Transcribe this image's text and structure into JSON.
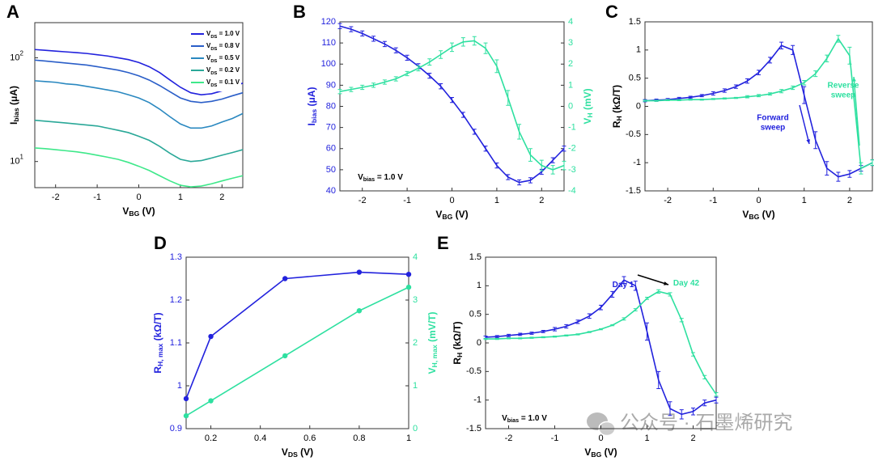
{
  "chart_data": [
    {
      "type": "line",
      "label": "A",
      "log_y": true,
      "legend": "upper right",
      "xlabel": [
        "V",
        "BG",
        " (V)"
      ],
      "ylabel": [
        "I",
        "bias",
        " (μA)"
      ],
      "xlim": [
        -2.5,
        2.5
      ],
      "xticks": [
        -2,
        -1,
        0,
        1,
        2
      ],
      "ylim": [
        5.6,
        218
      ],
      "yticks": [
        {
          "value": 10,
          "label": "10",
          "exponent": "1"
        },
        {
          "value": 100,
          "label": "10",
          "exponent": "2"
        }
      ],
      "x": [
        -2.5,
        -2.25,
        -2,
        -1.75,
        -1.5,
        -1.25,
        -1,
        -0.75,
        -0.5,
        -0.25,
        0,
        0.25,
        0.5,
        0.75,
        1,
        1.25,
        1.5,
        1.75,
        2,
        2.25,
        2.5
      ],
      "series": [
        {
          "name": [
            "V",
            "DS",
            " = 1.0 V"
          ],
          "color": "#2222dd",
          "values": [
            120,
            118,
            116,
            114,
            112,
            110,
            107,
            104,
            100,
            96,
            90,
            82,
            72,
            61,
            52,
            46,
            44,
            45,
            48,
            52,
            57
          ]
        },
        {
          "name": [
            "V",
            "DS",
            " = 0.8 V"
          ],
          "color": "#2a5ec8",
          "values": [
            95,
            93,
            91,
            89,
            87,
            85,
            82,
            79,
            76,
            72,
            67,
            61,
            54,
            47,
            41,
            38,
            37,
            38,
            40,
            43,
            46
          ]
        },
        {
          "name": [
            "V",
            "DS",
            " = 0.5 V"
          ],
          "color": "#2a88c0",
          "values": [
            60,
            59,
            58,
            56,
            55,
            53,
            51,
            49,
            47,
            44,
            41,
            37,
            32,
            27,
            23,
            21,
            21,
            22,
            24,
            26,
            29
          ]
        },
        {
          "name": [
            "V",
            "DS",
            " = 0.2 V"
          ],
          "color": "#2aa898",
          "values": [
            25,
            24.5,
            24,
            23.5,
            23,
            22.5,
            22,
            21,
            20,
            19,
            17.5,
            16,
            14,
            12,
            10.5,
            10,
            10.2,
            10.8,
            11.5,
            12.2,
            13
          ]
        },
        {
          "name": [
            "V",
            "DS",
            " = 0.1 V"
          ],
          "color": "#3ee88a",
          "values": [
            13.5,
            13.3,
            13,
            12.7,
            12.4,
            12,
            11.5,
            11,
            10.5,
            9.8,
            9,
            8.2,
            7.3,
            6.5,
            5.9,
            5.7,
            5.8,
            6.1,
            6.5,
            6.9,
            7.3
          ]
        }
      ]
    },
    {
      "type": "line",
      "label": "B",
      "xlabel": [
        "V",
        "BG",
        " (V)"
      ],
      "ylabel": [
        "I",
        "bias",
        " (μA)"
      ],
      "y2label": [
        "V",
        "H",
        " (mV)"
      ],
      "y_color": "#2222dd",
      "y2_color": "#2ee0a0",
      "xlim": [
        -2.5,
        2.5
      ],
      "xticks": [
        -2,
        -1,
        0,
        1,
        2
      ],
      "ylim": [
        40,
        120
      ],
      "yticks": [
        40,
        50,
        60,
        70,
        80,
        90,
        100,
        110,
        120
      ],
      "y2lim": [
        -4,
        4
      ],
      "y2ticks": [
        -4,
        -3,
        -2,
        -1,
        0,
        1,
        2,
        3,
        4
      ],
      "x": [
        -2.5,
        -2.25,
        -2,
        -1.75,
        -1.5,
        -1.25,
        -1,
        -0.75,
        -0.5,
        -0.25,
        0,
        0.25,
        0.5,
        0.75,
        1,
        1.25,
        1.5,
        1.75,
        2,
        2.25,
        2.5
      ],
      "series": [
        {
          "color": "#2222dd",
          "values": [
            118,
            116.5,
            114.5,
            112,
            109.5,
            106.5,
            103,
            99,
            94.5,
            89.5,
            83,
            76,
            68,
            60,
            52,
            46.5,
            44,
            45,
            49,
            54.5,
            60
          ],
          "errors": [
            1.2,
            1.2,
            1.2,
            1.2,
            1.2,
            1.2,
            1.2,
            1.2,
            1.2,
            1.2,
            1.2,
            1.2,
            1.2,
            1.2,
            1.2,
            1.2,
            1.2,
            1.2,
            1.2,
            1.2,
            1.2
          ]
        },
        {
          "color": "#2ee0a0",
          "axis": "y2",
          "values": [
            0.7,
            0.8,
            0.9,
            1.0,
            1.15,
            1.3,
            1.55,
            1.8,
            2.1,
            2.45,
            2.8,
            3.05,
            3.1,
            2.75,
            1.9,
            0.4,
            -1.2,
            -2.3,
            -2.8,
            -3.0,
            -2.8
          ],
          "errors": [
            0.1,
            0.1,
            0.1,
            0.1,
            0.1,
            0.1,
            0.1,
            0.12,
            0.15,
            0.18,
            0.2,
            0.2,
            0.2,
            0.25,
            0.3,
            0.35,
            0.35,
            0.3,
            0.25,
            0.2,
            0.2
          ]
        }
      ],
      "annotations": [
        {
          "text": [
            "V",
            "bias",
            " = 1.0 V"
          ],
          "color": "#000000"
        }
      ]
    },
    {
      "type": "line",
      "label": "C",
      "xlabel": [
        "V",
        "BG",
        " (V)"
      ],
      "ylabel": [
        "R",
        "H",
        " (kΩ/T)"
      ],
      "xlim": [
        -2.5,
        2.5
      ],
      "xticks": [
        -2,
        -1,
        0,
        1,
        2
      ],
      "ylim": [
        -1.5,
        1.5
      ],
      "yticks": [
        -1.5,
        -1,
        -0.5,
        0,
        0.5,
        1,
        1.5
      ],
      "x": [
        -2.5,
        -2.25,
        -2,
        -1.75,
        -1.5,
        -1.25,
        -1,
        -0.75,
        -0.5,
        -0.25,
        0,
        0.25,
        0.5,
        0.75,
        1,
        1.25,
        1.5,
        1.75,
        2,
        2.25,
        2.5
      ],
      "series": [
        {
          "color": "#2222dd",
          "values": [
            0.1,
            0.11,
            0.12,
            0.14,
            0.16,
            0.19,
            0.23,
            0.28,
            0.35,
            0.45,
            0.6,
            0.82,
            1.08,
            1.0,
            0.2,
            -0.6,
            -1.1,
            -1.25,
            -1.2,
            -1.1,
            -1.0
          ],
          "errors": [
            0.02,
            0.02,
            0.02,
            0.02,
            0.02,
            0.02,
            0.03,
            0.03,
            0.03,
            0.04,
            0.04,
            0.05,
            0.06,
            0.08,
            0.15,
            0.15,
            0.12,
            0.08,
            0.06,
            0.05,
            0.05
          ]
        },
        {
          "color": "#2ee0a0",
          "values": [
            0.1,
            0.1,
            0.11,
            0.11,
            0.12,
            0.12,
            0.13,
            0.14,
            0.15,
            0.17,
            0.19,
            0.22,
            0.27,
            0.33,
            0.42,
            0.58,
            0.85,
            1.2,
            0.9,
            -1.1,
            -1.0
          ],
          "errors": [
            0.01,
            0.01,
            0.01,
            0.01,
            0.01,
            0.01,
            0.01,
            0.01,
            0.01,
            0.02,
            0.02,
            0.02,
            0.03,
            0.03,
            0.04,
            0.05,
            0.06,
            0.06,
            0.15,
            0.1,
            0.05
          ]
        }
      ],
      "annotations": [
        {
          "lines": [
            "Forward",
            "sweep"
          ],
          "color": "#2222dd"
        },
        {
          "lines": [
            "Reverse",
            "sweep"
          ],
          "color": "#2ee0a0"
        }
      ]
    },
    {
      "type": "line",
      "label": "D",
      "marker": "circle",
      "xlabel": [
        "V",
        "DS",
        " (V)"
      ],
      "ylabel": [
        "R",
        "H, max",
        " (kΩ/T)"
      ],
      "y2label": [
        "V",
        "H, max",
        " (mV/T)"
      ],
      "y_color": "#2222dd",
      "y2_color": "#2ee0a0",
      "xlim": [
        0.1,
        1
      ],
      "xticks": [
        0.2,
        0.4,
        0.6,
        0.8,
        1
      ],
      "ylim": [
        0.9,
        1.3
      ],
      "yticks": [
        0.9,
        1,
        1.1,
        1.2,
        1.3
      ],
      "y2lim": [
        0,
        4
      ],
      "y2ticks": [
        0,
        1,
        2,
        3,
        4
      ],
      "x": [
        0.1,
        0.2,
        0.5,
        0.8,
        1
      ],
      "series": [
        {
          "color": "#2222dd",
          "values": [
            0.97,
            1.115,
            1.25,
            1.265,
            1.26
          ]
        },
        {
          "color": "#2ee0a0",
          "axis": "y2",
          "values": [
            0.3,
            0.65,
            1.7,
            2.75,
            3.3
          ]
        }
      ]
    },
    {
      "type": "line",
      "label": "E",
      "xlabel": [
        "V",
        "BG",
        " (V)"
      ],
      "ylabel": [
        "R",
        "H",
        " (kΩ/T)"
      ],
      "xlim": [
        -2.5,
        2.5
      ],
      "xticks": [
        -2,
        -1,
        0,
        1,
        2
      ],
      "ylim": [
        -1.5,
        1.5
      ],
      "yticks": [
        -1.5,
        -1,
        -0.5,
        0,
        0.5,
        1,
        1.5
      ],
      "x": [
        -2.5,
        -2.25,
        -2,
        -1.75,
        -1.5,
        -1.25,
        -1,
        -0.75,
        -0.5,
        -0.25,
        0,
        0.25,
        0.5,
        0.75,
        1,
        1.25,
        1.5,
        1.75,
        2,
        2.25,
        2.5
      ],
      "series": [
        {
          "color": "#2222dd",
          "values": [
            0.1,
            0.11,
            0.13,
            0.15,
            0.17,
            0.2,
            0.24,
            0.29,
            0.37,
            0.47,
            0.62,
            0.85,
            1.1,
            1.0,
            0.2,
            -0.65,
            -1.15,
            -1.25,
            -1.2,
            -1.05,
            -1.0
          ],
          "errors": [
            0.02,
            0.02,
            0.02,
            0.02,
            0.02,
            0.02,
            0.03,
            0.03,
            0.03,
            0.04,
            0.04,
            0.05,
            0.06,
            0.08,
            0.15,
            0.15,
            0.12,
            0.08,
            0.06,
            0.05,
            0.05
          ]
        },
        {
          "color": "#2ee0a0",
          "values": [
            0.07,
            0.07,
            0.08,
            0.08,
            0.09,
            0.1,
            0.11,
            0.13,
            0.15,
            0.19,
            0.24,
            0.31,
            0.42,
            0.58,
            0.78,
            0.9,
            0.85,
            0.4,
            -0.2,
            -0.6,
            -0.9
          ],
          "errors": [
            0.01,
            0.01,
            0.01,
            0.01,
            0.01,
            0.01,
            0.01,
            0.01,
            0.01,
            0.01,
            0.01,
            0.01,
            0.02,
            0.02,
            0.02,
            0.03,
            0.03,
            0.03,
            0.03,
            0.03,
            0.03
          ]
        }
      ],
      "annotations": [
        {
          "text": [
            "Day 1"
          ],
          "color": "#2222dd"
        },
        {
          "text": [
            "Day 42"
          ],
          "color": "#2ee0a0"
        },
        {
          "text": [
            "V",
            "bias",
            " = 1.0 V"
          ],
          "color": "#000000"
        }
      ]
    }
  ],
  "watermark": "公众号 · 石墨烯研究"
}
